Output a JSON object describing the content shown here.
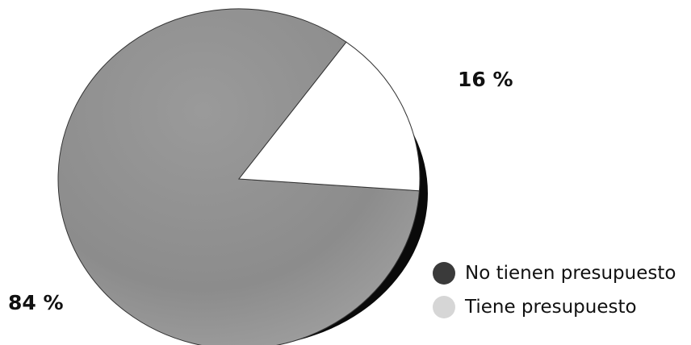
{
  "chart_data": {
    "type": "pie",
    "title": "",
    "slices": [
      {
        "label": "No tienen presupuesto",
        "value": 84,
        "display": "84 %",
        "color": "#8e8e8e",
        "legend_color": "#3a3a3a"
      },
      {
        "label": "Tiene presupuesto",
        "value": 16,
        "display": "16 %",
        "color": "#ffffff",
        "legend_color": "#d6d6d6"
      }
    ],
    "legend_position": "bottom-right",
    "style": "3d"
  }
}
